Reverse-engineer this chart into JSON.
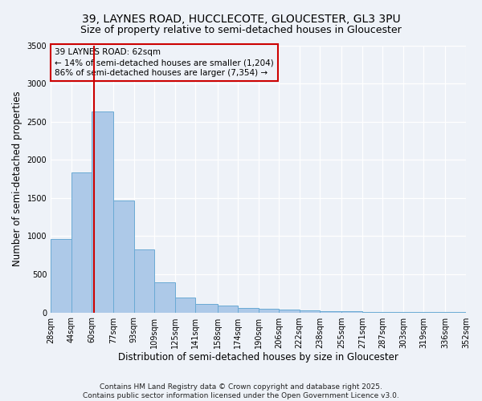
{
  "title": "39, LAYNES ROAD, HUCCLECOTE, GLOUCESTER, GL3 3PU",
  "subtitle": "Size of property relative to semi-detached houses in Gloucester",
  "xlabel": "Distribution of semi-detached houses by size in Gloucester",
  "ylabel": "Number of semi-detached properties",
  "footnote1": "Contains HM Land Registry data © Crown copyright and database right 2025.",
  "footnote2": "Contains public sector information licensed under the Open Government Licence v3.0.",
  "annotation_title": "39 LAYNES ROAD: 62sqm",
  "annotation_line1": "← 14% of semi-detached houses are smaller (1,204)",
  "annotation_line2": "86% of semi-detached houses are larger (7,354) →",
  "property_size": 62,
  "bar_edges": [
    28,
    44,
    60,
    77,
    93,
    109,
    125,
    141,
    158,
    174,
    190,
    206,
    222,
    238,
    255,
    271,
    287,
    303,
    319,
    336,
    352
  ],
  "bar_heights": [
    960,
    1830,
    2630,
    1470,
    830,
    390,
    200,
    110,
    90,
    60,
    50,
    40,
    30,
    20,
    15,
    10,
    8,
    5,
    3,
    2
  ],
  "bar_color": "#adc9e8",
  "bar_edge_color": "#6aaad4",
  "vline_color": "#cc0000",
  "vline_x": 62,
  "ylim": [
    0,
    3500
  ],
  "yticks": [
    0,
    500,
    1000,
    1500,
    2000,
    2500,
    3000,
    3500
  ],
  "bg_color": "#eef2f8",
  "annotation_box_color": "#cc0000",
  "title_fontsize": 10,
  "subtitle_fontsize": 9,
  "axis_label_fontsize": 8.5,
  "tick_fontsize": 7,
  "footnote_fontsize": 6.5,
  "annotation_fontsize": 7.5
}
